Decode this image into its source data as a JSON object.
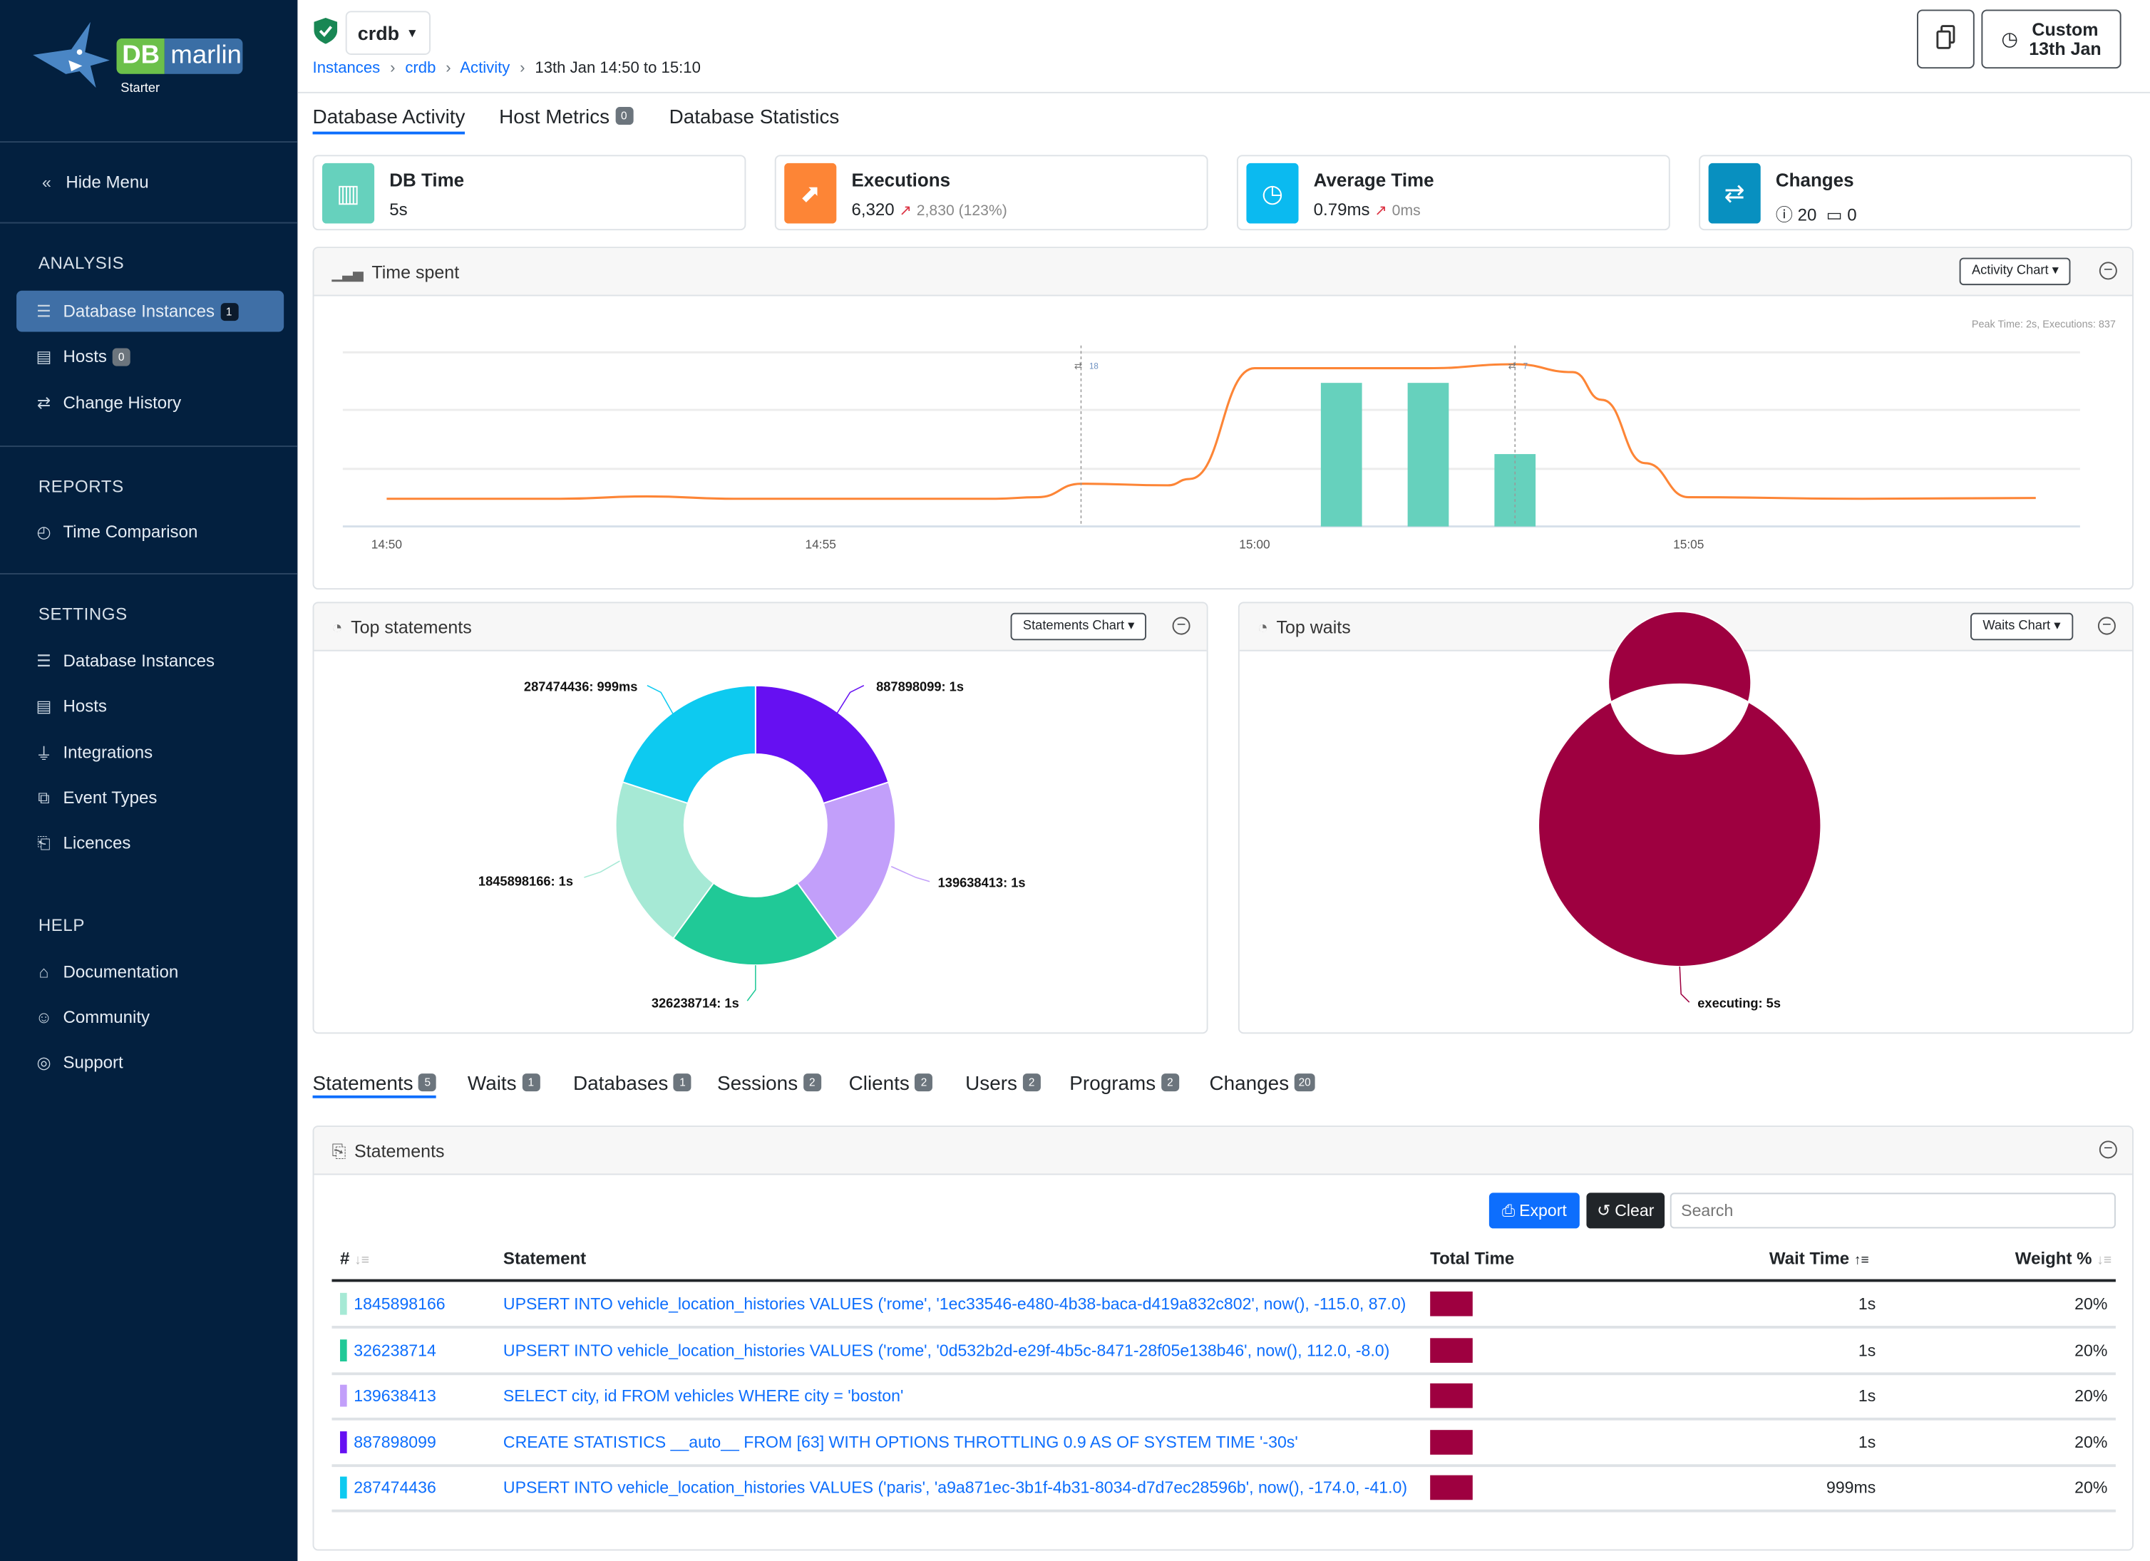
{
  "sidebar": {
    "logo_text": "DB marlin",
    "edition": "Starter",
    "hide_menu": "Hide Menu",
    "sections": [
      {
        "title": "ANALYSIS",
        "items": [
          {
            "label": "Database Instances",
            "icon": "database-icon",
            "badge": "1",
            "active": true
          },
          {
            "label": "Hosts",
            "icon": "server-icon",
            "badge": "0"
          },
          {
            "label": "Change History",
            "icon": "arrows-exchange-icon"
          }
        ]
      },
      {
        "title": "REPORTS",
        "items": [
          {
            "label": "Time Comparison",
            "icon": "stopwatch-icon"
          }
        ]
      },
      {
        "title": "SETTINGS",
        "items": [
          {
            "label": "Database Instances",
            "icon": "database-icon"
          },
          {
            "label": "Hosts",
            "icon": "server-icon"
          },
          {
            "label": "Integrations",
            "icon": "plug-icon"
          },
          {
            "label": "Event Types",
            "icon": "event-types-icon"
          },
          {
            "label": "Licences",
            "icon": "licence-icon"
          }
        ]
      },
      {
        "title": "HELP",
        "items": [
          {
            "label": "Documentation",
            "icon": "book-icon"
          },
          {
            "label": "Community",
            "icon": "people-icon"
          },
          {
            "label": "Support",
            "icon": "lifebuoy-icon"
          }
        ]
      }
    ]
  },
  "header": {
    "instance": "crdb",
    "breadcrumb": [
      "Instances",
      "crdb",
      "Activity"
    ],
    "breadcrumb_current": "13th Jan 14:50 to 15:10",
    "time_button": {
      "line1": "Custom",
      "line2": "13th Jan"
    }
  },
  "tabs": [
    {
      "label": "Database Activity",
      "active": true
    },
    {
      "label": "Host Metrics",
      "badge": "0"
    },
    {
      "label": "Database Statistics"
    }
  ],
  "cards": [
    {
      "title": "DB Time",
      "value": "5s",
      "color": "#66d1bd",
      "icon": "bar-chart-icon"
    },
    {
      "title": "Executions",
      "value": "6,320",
      "delta": "2,830 (123%)",
      "color": "#fd8536",
      "icon": "trend-chart-icon"
    },
    {
      "title": "Average Time",
      "value": "0.79ms",
      "delta": "0ms",
      "color": "#0bbaf0",
      "icon": "clock-icon"
    },
    {
      "title": "Changes",
      "info_count": "20",
      "calendar_count": "0",
      "color": "#0890c0",
      "icon": "arrows-exchange-icon"
    }
  ],
  "time_spent": {
    "title": "Time spent",
    "dropdown": "Activity Chart",
    "peak": "Peak Time: 2s, Executions: 837"
  },
  "top_statements": {
    "title": "Top statements",
    "dropdown": "Statements Chart"
  },
  "top_waits": {
    "title": "Top waits",
    "dropdown": "Waits Chart"
  },
  "chart_data": [
    {
      "type": "line",
      "x_ticks": [
        "14:50",
        "14:55",
        "15:00",
        "15:05"
      ],
      "grid": true,
      "series": [
        {
          "kind": "line",
          "color": "#fd8536",
          "x": [
            "14:50",
            "14:52",
            "14:53",
            "14:54",
            "14:57",
            "14:57:30",
            "14:58",
            "14:59",
            "14:59:15",
            "15:00",
            "15:02",
            "15:03",
            "15:03:40",
            "15:04",
            "15:04:30",
            "15:05",
            "15:07",
            "15:09"
          ],
          "y": [
            0.35,
            0.35,
            0.38,
            0.35,
            0.35,
            0.37,
            0.54,
            0.52,
            0.6,
            2.0,
            2.0,
            2.05,
            1.95,
            1.6,
            0.8,
            0.37,
            0.35,
            0.36
          ]
        },
        {
          "kind": "bar",
          "color": "#66d1bd",
          "x": [
            "15:01",
            "15:02",
            "15:03"
          ],
          "y": [
            837,
            837,
            422
          ]
        }
      ],
      "markers": [
        {
          "x": "14:58",
          "label": "18"
        },
        {
          "x": "15:03",
          "label": "7"
        }
      ]
    },
    {
      "type": "pie",
      "donut": true,
      "labels": [
        "887898099: 1s",
        "139638413: 1s",
        "326238714: 1s",
        "1845898166: 1s",
        "287474436: 999ms"
      ],
      "values": [
        1,
        1,
        1,
        1,
        0.999
      ],
      "colors": [
        "#6610f2",
        "#c29ffa",
        "#20c997",
        "#a6e9d5",
        "#0dcaf0"
      ]
    },
    {
      "type": "pie",
      "donut": true,
      "labels": [
        "executing: 5s"
      ],
      "values": [
        5
      ],
      "colors": [
        "#9e0040"
      ]
    }
  ],
  "bottom_tabs": [
    {
      "label": "Statements",
      "badge": "5",
      "active": true
    },
    {
      "label": "Waits",
      "badge": "1"
    },
    {
      "label": "Databases",
      "badge": "1"
    },
    {
      "label": "Sessions",
      "badge": "2"
    },
    {
      "label": "Clients",
      "badge": "2"
    },
    {
      "label": "Users",
      "badge": "2"
    },
    {
      "label": "Programs",
      "badge": "2"
    },
    {
      "label": "Changes",
      "badge": "20"
    }
  ],
  "statements": {
    "title": "Statements",
    "export": "Export",
    "clear": "Clear",
    "search_placeholder": "Search",
    "columns": [
      "#",
      "Statement",
      "Total Time",
      "Wait Time",
      "Weight %"
    ],
    "rows": [
      {
        "id": "1845898166",
        "color": "#a6e9d5",
        "statement": "UPSERT INTO vehicle_location_histories VALUES ('rome', '1ec33546-e480-4b38-baca-d419a832c802', now(), -115.0, 87.0)",
        "total_time_fraction": 1,
        "wait_time": "1s",
        "weight": "20%"
      },
      {
        "id": "326238714",
        "color": "#20c997",
        "statement": "UPSERT INTO vehicle_location_histories VALUES ('rome', '0d532b2d-e29f-4b5c-8471-28f05e138b46', now(), 112.0, -8.0)",
        "total_time_fraction": 1,
        "wait_time": "1s",
        "weight": "20%"
      },
      {
        "id": "139638413",
        "color": "#c29ffa",
        "statement": "SELECT city, id FROM vehicles WHERE city = 'boston'",
        "total_time_fraction": 1,
        "wait_time": "1s",
        "weight": "20%"
      },
      {
        "id": "887898099",
        "color": "#6610f2",
        "statement": "CREATE STATISTICS __auto__ FROM [63] WITH OPTIONS THROTTLING 0.9 AS OF SYSTEM TIME '-30s'",
        "total_time_fraction": 1,
        "wait_time": "1s",
        "weight": "20%"
      },
      {
        "id": "287474436",
        "color": "#0dcaf0",
        "statement": "UPSERT INTO vehicle_location_histories VALUES ('paris', 'a9a871ec-3b1f-4b31-8034-d7d7ec28596b', now(), -174.0, -41.0)",
        "total_time_fraction": 0.999,
        "wait_time": "999ms",
        "weight": "20%"
      }
    ]
  }
}
